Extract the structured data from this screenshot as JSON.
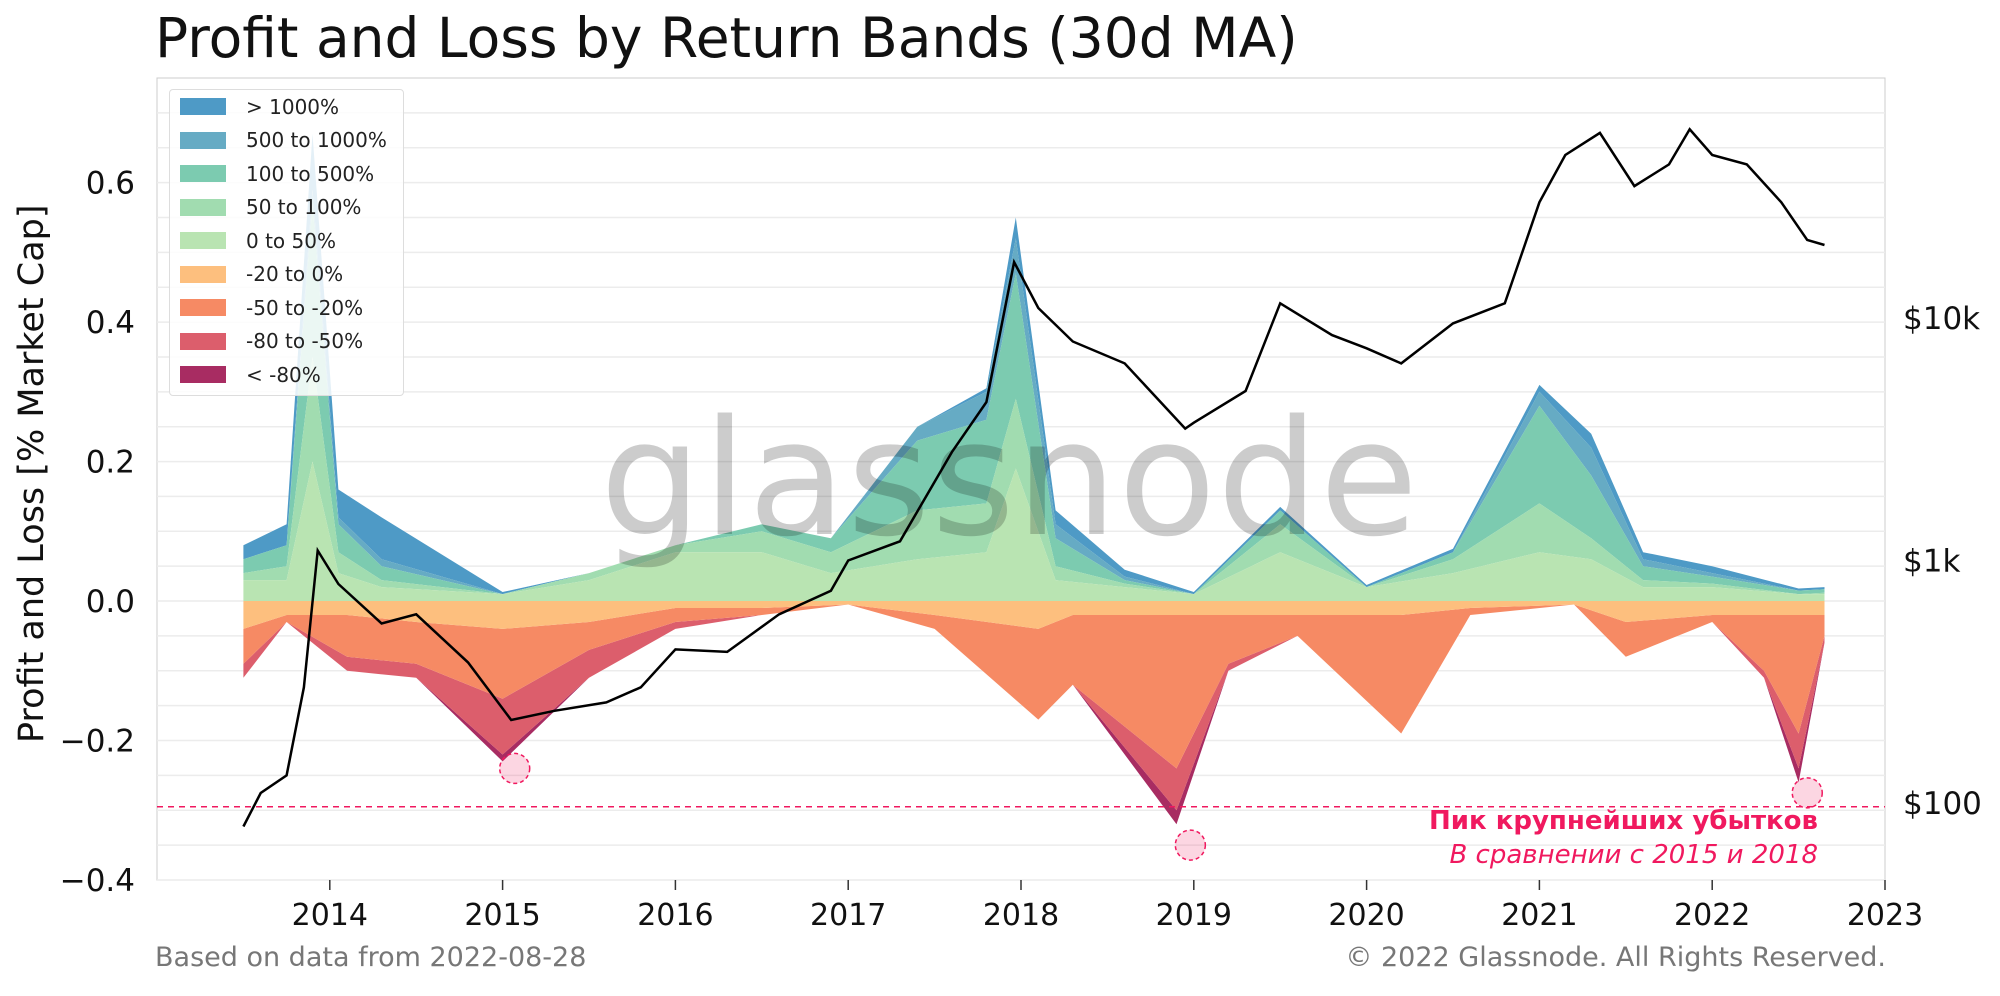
{
  "title": "Profit and Loss by Return Bands (30d MA)",
  "watermark": "glassnode",
  "footer": {
    "left": "Based on data from 2022-08-28",
    "right": "© 2022 Glassnode. All Rights Reserved."
  },
  "annotation": {
    "line1": "Пик крупнейших убытков",
    "line2": "В сравнении с 2015 и 2018"
  },
  "colors": {
    "gt1000": "#4e9ac6",
    "b500_1000": "#66abc4",
    "b100_500": "#7ccbb0",
    "b50_100": "#a1dcb0",
    "b0_50": "#b9e4b2",
    "bm20_0": "#fdbf7e",
    "bm50_m20": "#f68a64",
    "bm80_m50": "#dc5e6c",
    "lt_m80": "#a82c62",
    "price": "#000000",
    "highlight": "#f0195f"
  },
  "chart_data": {
    "type": "area",
    "title": "Profit and Loss by Return Bands (30d MA)",
    "ylabel": "Profit and Loss [% Market Cap]",
    "ylim": [
      -0.4,
      0.75
    ],
    "yticks": [
      "0.6",
      "0.4",
      "0.2",
      "0.0",
      "−0.2",
      "−0.4"
    ],
    "xlim": [
      2013.0,
      2023.0
    ],
    "xticks": [
      "2014",
      "2015",
      "2016",
      "2017",
      "2018",
      "2019",
      "2020",
      "2021",
      "2022",
      "2023"
    ],
    "secondary_axis": {
      "label_scale": "log",
      "ticks": [
        "$100",
        "$1k",
        "$10k"
      ]
    },
    "legend_position": "upper-left",
    "grid": true,
    "reference_line": {
      "y": -0.295,
      "style": "dashed"
    },
    "series": [
      {
        "name": "> 1000%",
        "stack": "profit",
        "x": [
          2013.5,
          2013.75,
          2013.9,
          2014.05,
          2014.3,
          2015.0,
          2015.5,
          2016.0,
          2016.5,
          2016.9,
          2017.4,
          2017.8,
          2017.97,
          2018.2,
          2018.6,
          2019.0,
          2019.5,
          2020.0,
          2020.5,
          2021.0,
          2021.3,
          2021.6,
          2022.0,
          2022.5,
          2022.65
        ],
        "values": [
          0.02,
          0.03,
          0.08,
          0.04,
          0.06,
          0.003,
          0.0,
          0.0,
          0.0,
          0.0,
          0.0,
          0.005,
          0.03,
          0.02,
          0.01,
          0.003,
          0.005,
          0.003,
          0.005,
          0.01,
          0.02,
          0.01,
          0.01,
          0.003,
          0.003
        ]
      },
      {
        "name": "500 to 1000%",
        "stack": "profit",
        "x": [
          2013.5,
          2013.75,
          2013.9,
          2014.05,
          2014.3,
          2015.0,
          2015.5,
          2016.0,
          2016.5,
          2016.9,
          2017.4,
          2017.8,
          2017.97,
          2018.2,
          2018.6,
          2019.0,
          2019.5,
          2020.0,
          2020.5,
          2021.0,
          2021.3,
          2021.6,
          2022.0,
          2022.5,
          2022.65
        ],
        "values": [
          0.0,
          0.0,
          0.02,
          0.01,
          0.01,
          0.0,
          0.0,
          0.0,
          0.0,
          0.0,
          0.02,
          0.04,
          0.05,
          0.02,
          0.005,
          0.0,
          0.0,
          0.0,
          0.0,
          0.02,
          0.04,
          0.01,
          0.005,
          0.0,
          0.0
        ]
      },
      {
        "name": "100 to 500%",
        "stack": "profit",
        "x": [
          2013.5,
          2013.75,
          2013.9,
          2014.05,
          2014.3,
          2015.0,
          2015.5,
          2016.0,
          2016.5,
          2016.9,
          2017.4,
          2017.8,
          2017.97,
          2018.2,
          2018.6,
          2019.0,
          2019.5,
          2020.0,
          2020.5,
          2021.0,
          2021.3,
          2021.6,
          2022.0,
          2022.5,
          2022.65
        ],
        "values": [
          0.02,
          0.03,
          0.22,
          0.04,
          0.02,
          0.0,
          0.0,
          0.0,
          0.01,
          0.02,
          0.1,
          0.12,
          0.18,
          0.04,
          0.005,
          0.0,
          0.02,
          0.0,
          0.01,
          0.14,
          0.09,
          0.02,
          0.01,
          0.005,
          0.005
        ]
      },
      {
        "name": "50 to 100%",
        "stack": "profit",
        "x": [
          2013.5,
          2013.75,
          2013.9,
          2014.05,
          2014.3,
          2015.0,
          2015.5,
          2016.0,
          2016.5,
          2016.9,
          2017.4,
          2017.8,
          2017.97,
          2018.2,
          2018.6,
          2019.0,
          2019.5,
          2020.0,
          2020.5,
          2021.0,
          2021.3,
          2021.6,
          2022.0,
          2022.5,
          2022.65
        ],
        "values": [
          0.01,
          0.02,
          0.15,
          0.03,
          0.01,
          0.0,
          0.01,
          0.01,
          0.03,
          0.03,
          0.07,
          0.07,
          0.1,
          0.02,
          0.005,
          0.0,
          0.04,
          0.0,
          0.02,
          0.07,
          0.03,
          0.01,
          0.005,
          0.0,
          0.002
        ]
      },
      {
        "name": "0 to 50%",
        "stack": "profit",
        "x": [
          2013.5,
          2013.75,
          2013.9,
          2014.05,
          2014.3,
          2015.0,
          2015.5,
          2016.0,
          2016.5,
          2016.9,
          2017.4,
          2017.8,
          2017.97,
          2018.2,
          2018.6,
          2019.0,
          2019.5,
          2020.0,
          2020.5,
          2021.0,
          2021.3,
          2021.6,
          2022.0,
          2022.5,
          2022.65
        ],
        "values": [
          0.03,
          0.03,
          0.2,
          0.04,
          0.02,
          0.01,
          0.03,
          0.07,
          0.07,
          0.04,
          0.06,
          0.07,
          0.19,
          0.03,
          0.02,
          0.01,
          0.07,
          0.02,
          0.04,
          0.07,
          0.06,
          0.02,
          0.02,
          0.01,
          0.01
        ]
      },
      {
        "name": "-20 to 0%",
        "stack": "loss",
        "x": [
          2013.5,
          2013.75,
          2014.1,
          2014.5,
          2015.0,
          2015.5,
          2016.0,
          2016.5,
          2017.0,
          2017.5,
          2018.1,
          2018.3,
          2018.9,
          2019.2,
          2019.6,
          2020.2,
          2020.6,
          2021.2,
          2021.5,
          2022.0,
          2022.3,
          2022.5,
          2022.65
        ],
        "values": [
          -0.04,
          -0.02,
          -0.02,
          -0.03,
          -0.04,
          -0.03,
          -0.01,
          -0.01,
          -0.005,
          -0.02,
          -0.04,
          -0.02,
          -0.02,
          -0.02,
          -0.02,
          -0.02,
          -0.01,
          -0.005,
          -0.03,
          -0.02,
          -0.02,
          -0.02,
          -0.02
        ]
      },
      {
        "name": "-50 to -20%",
        "stack": "loss",
        "x": [
          2013.5,
          2013.75,
          2014.1,
          2014.5,
          2015.0,
          2015.5,
          2016.0,
          2016.5,
          2017.0,
          2017.5,
          2018.1,
          2018.3,
          2018.9,
          2019.2,
          2019.6,
          2020.2,
          2020.6,
          2021.2,
          2021.5,
          2022.0,
          2022.3,
          2022.5,
          2022.65
        ],
        "values": [
          -0.05,
          -0.01,
          -0.06,
          -0.06,
          -0.1,
          -0.04,
          -0.02,
          -0.01,
          0.0,
          -0.02,
          -0.13,
          -0.1,
          -0.22,
          -0.07,
          -0.03,
          -0.17,
          -0.01,
          0.0,
          -0.05,
          -0.01,
          -0.08,
          -0.17,
          -0.03
        ]
      },
      {
        "name": "-80 to -50%",
        "stack": "loss",
        "x": [
          2013.5,
          2013.75,
          2014.1,
          2014.5,
          2015.0,
          2015.5,
          2016.0,
          2016.5,
          2017.0,
          2017.5,
          2018.1,
          2018.3,
          2018.9,
          2019.2,
          2019.6,
          2020.2,
          2020.6,
          2021.2,
          2021.5,
          2022.0,
          2022.3,
          2022.5,
          2022.65
        ],
        "values": [
          -0.02,
          0.0,
          -0.02,
          -0.02,
          -0.08,
          -0.04,
          -0.01,
          0.0,
          0.0,
          0.0,
          0.0,
          0.0,
          -0.06,
          -0.01,
          0.0,
          0.0,
          0.0,
          0.0,
          0.0,
          0.0,
          -0.01,
          -0.05,
          -0.01
        ]
      },
      {
        "name": "< -80%",
        "stack": "loss",
        "x": [
          2013.5,
          2013.75,
          2014.1,
          2014.5,
          2015.0,
          2015.5,
          2016.0,
          2016.5,
          2017.0,
          2017.5,
          2018.1,
          2018.3,
          2018.9,
          2019.2,
          2019.6,
          2020.2,
          2020.6,
          2021.2,
          2021.5,
          2022.0,
          2022.3,
          2022.5,
          2022.65
        ],
        "values": [
          0.0,
          0.0,
          0.0,
          0.0,
          -0.01,
          0.0,
          0.0,
          0.0,
          0.0,
          0.0,
          0.0,
          0.0,
          -0.02,
          0.0,
          0.0,
          0.0,
          0.0,
          0.0,
          0.0,
          0.0,
          0.0,
          -0.02,
          0.0
        ]
      },
      {
        "name": "Price",
        "axis": "secondary",
        "x": [
          2013.5,
          2013.6,
          2013.75,
          2013.85,
          2013.93,
          2014.05,
          2014.3,
          2014.5,
          2014.8,
          2015.05,
          2015.3,
          2015.6,
          2015.8,
          2016.0,
          2016.3,
          2016.6,
          2016.9,
          2017.0,
          2017.3,
          2017.6,
          2017.8,
          2017.96,
          2018.1,
          2018.3,
          2018.6,
          2018.95,
          2019.0,
          2019.3,
          2019.5,
          2019.8,
          2020.0,
          2020.2,
          2020.5,
          2020.8,
          2021.0,
          2021.15,
          2021.35,
          2021.55,
          2021.75,
          2021.87,
          2022.0,
          2022.2,
          2022.4,
          2022.55,
          2022.65
        ],
        "values": [
          80,
          110,
          130,
          300,
          1100,
          800,
          550,
          600,
          380,
          220,
          240,
          260,
          300,
          430,
          420,
          600,
          750,
          1000,
          1200,
          2800,
          4500,
          17000,
          11000,
          8000,
          6500,
          3500,
          3700,
          5000,
          11500,
          8500,
          7500,
          6500,
          9500,
          11500,
          30000,
          47000,
          58000,
          35000,
          43000,
          60000,
          47000,
          43000,
          30000,
          21000,
          20000
        ]
      }
    ]
  }
}
